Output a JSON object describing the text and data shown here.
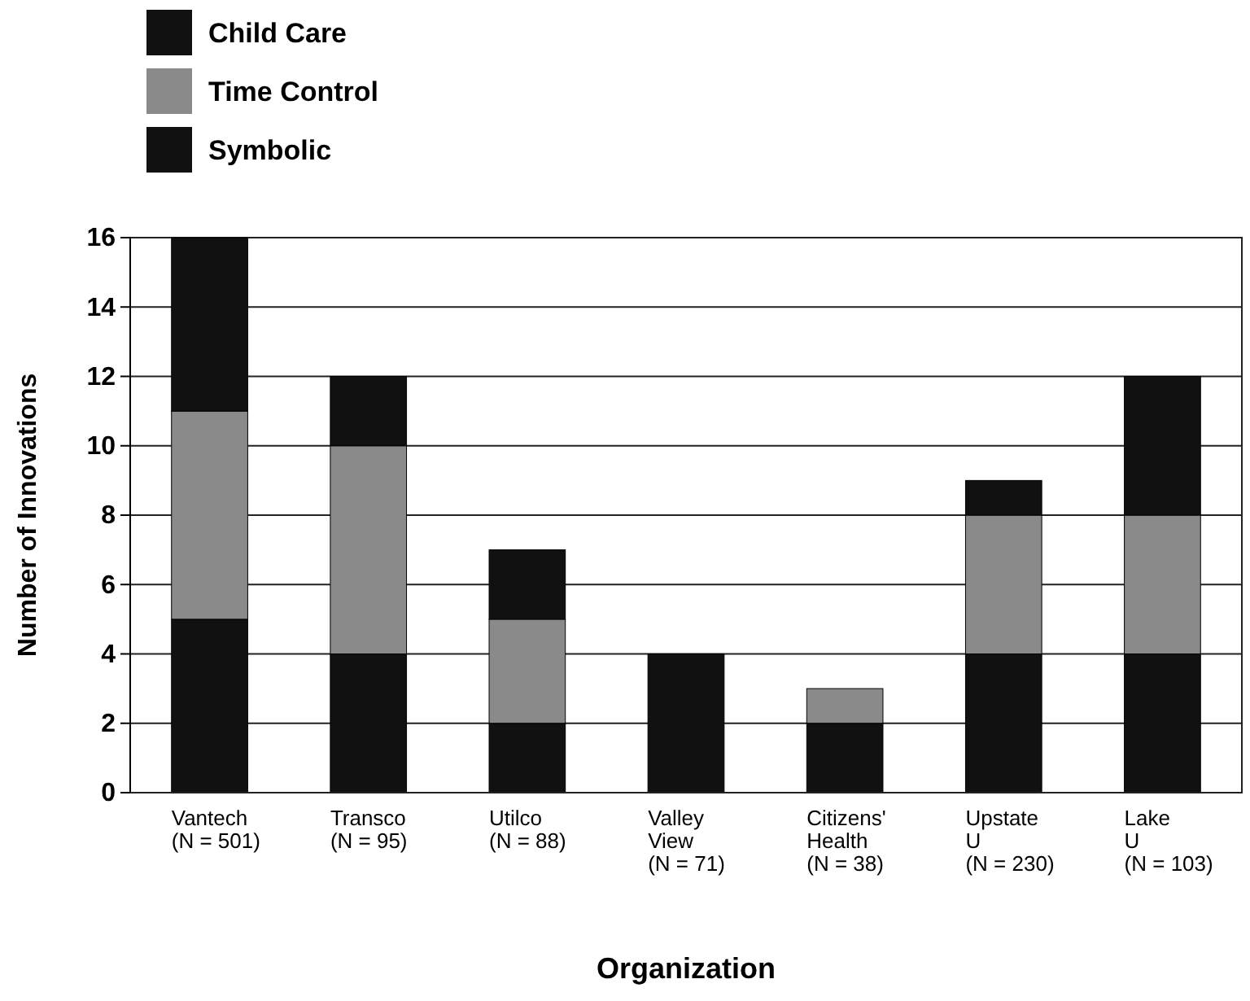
{
  "chart_data": {
    "type": "bar",
    "stacked": true,
    "xlabel": "Organization",
    "ylabel": "Number of Innovations",
    "categories": [
      "Vantech\n(N = 501)",
      "Transco\n(N = 95)",
      "Utilco\n(N = 88)",
      "Valley\nView\n(N = 71)",
      "Citizens'\nHealth\n(N = 38)",
      "Upstate\nU\n(N = 230)",
      "Lake\nU\n(N = 103)"
    ],
    "series": [
      {
        "name": "Symbolic",
        "color": "#111111",
        "values": [
          5,
          4,
          2,
          4,
          2,
          4,
          4
        ]
      },
      {
        "name": "Time Control",
        "color": "#8a8a8a",
        "values": [
          6,
          6,
          3,
          0,
          1,
          4,
          4
        ]
      },
      {
        "name": "Child Care",
        "color": "#111111",
        "values": [
          5,
          2,
          2,
          0,
          0,
          1,
          4
        ]
      }
    ],
    "ylim": [
      0,
      16
    ],
    "yticks": [
      0,
      2,
      4,
      6,
      8,
      10,
      12,
      14,
      16
    ],
    "grid": "y",
    "legend": "top left"
  }
}
